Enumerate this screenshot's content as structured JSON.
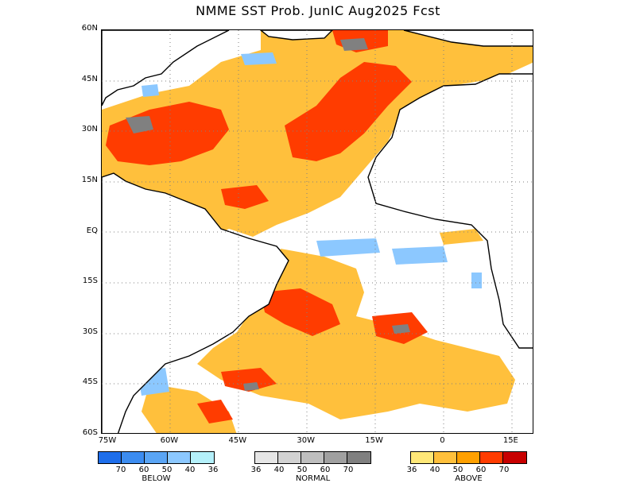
{
  "title": "NMME SST Prob. JunIC  Aug2025 Fcst",
  "map": {
    "lat_labels": [
      "60N",
      "45N",
      "30N",
      "15N",
      "EQ",
      "15S",
      "30S",
      "45S",
      "60S"
    ],
    "lon_labels": [
      "75W",
      "60W",
      "45W",
      "30W",
      "15W",
      "0",
      "15E"
    ],
    "lat_range": [
      -60,
      60
    ],
    "lon_range": [
      -75,
      20
    ],
    "grid": "dotted"
  },
  "legend": {
    "below": {
      "label": "BELOW",
      "ticks": [
        "70",
        "60",
        "50",
        "40",
        "36"
      ],
      "colors": [
        "#1e6eeb",
        "#3c8cf0",
        "#5aa5f5",
        "#8cc8ff",
        "#b4f0fa"
      ]
    },
    "normal": {
      "label": "NORMAL",
      "ticks": [
        "36",
        "40",
        "50",
        "60",
        "70"
      ],
      "colors": [
        "#e6e6e6",
        "#d2d2d2",
        "#bebebe",
        "#a0a0a0",
        "#808080"
      ]
    },
    "above": {
      "label": "ABOVE",
      "ticks": [
        "36",
        "40",
        "50",
        "60",
        "70"
      ],
      "colors": [
        "#ffe878",
        "#ffc03c",
        "#ffa000",
        "#ff3c00",
        "#c80000"
      ]
    }
  }
}
